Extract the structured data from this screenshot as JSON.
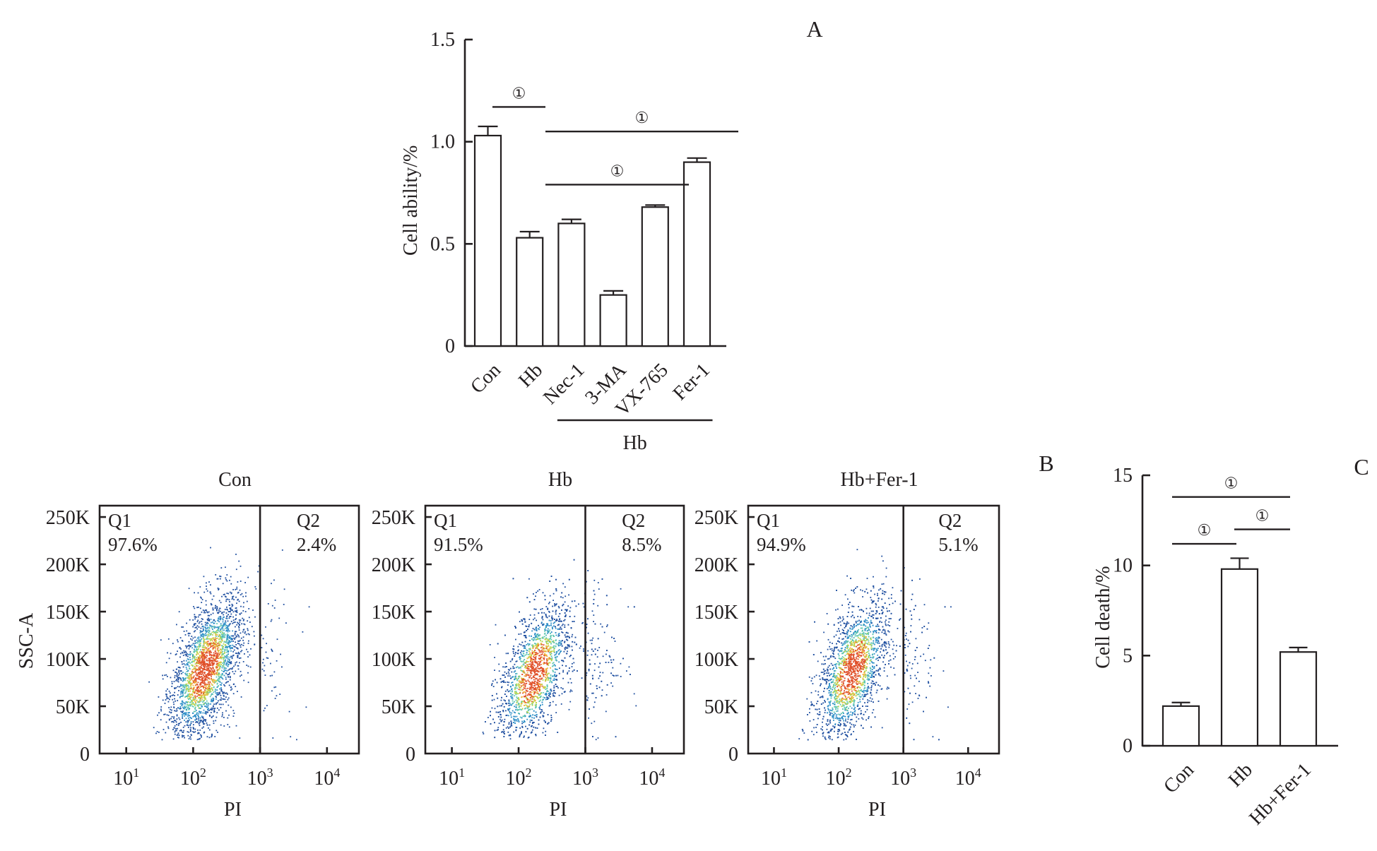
{
  "chart_data": [
    {
      "id": "A",
      "type": "bar",
      "panel_label": "A",
      "title": "",
      "xlabel": "",
      "ylabel": "Cell ability/%",
      "ylim": [
        0,
        1.5
      ],
      "yticks": [
        0,
        0.5,
        1.0,
        1.5
      ],
      "ytick_labels": [
        "0",
        "0.5",
        "1.0",
        "1.5"
      ],
      "categories": [
        "Con",
        "Hb",
        "Nec-1",
        "3-MA",
        "VX-765",
        "Fer-1"
      ],
      "values": [
        1.03,
        0.53,
        0.6,
        0.25,
        0.68,
        0.9
      ],
      "errors": [
        0.045,
        0.03,
        0.02,
        0.02,
        0.01,
        0.02
      ],
      "group_bracket": {
        "label": "Hb",
        "from": "Nec-1",
        "to": "Fer-1"
      },
      "significance": [
        {
          "from": "Con",
          "to": "Hb",
          "y": 1.17,
          "symbol": "①"
        },
        {
          "from": "Hb",
          "to": "Fer-1",
          "y": 1.05,
          "symbol": "①"
        },
        {
          "from": "Hb",
          "to": "VX-765",
          "y": 0.79,
          "symbol": "①"
        }
      ],
      "grid": false
    },
    {
      "id": "B",
      "type": "scatter",
      "panel_label": "B",
      "xlabel": "PI",
      "ylabel": "SSC-A",
      "x_scale": "log",
      "xlim": [
        4,
        30000
      ],
      "xticks": [
        10,
        100,
        1000,
        10000
      ],
      "xtick_labels": [
        "10^1",
        "10^2",
        "10^3",
        "10^4"
      ],
      "ylim": [
        0,
        262000
      ],
      "yticks": [
        0,
        50000,
        100000,
        150000,
        200000,
        250000
      ],
      "ytick_labels": [
        "0",
        "50K",
        "100K",
        "150K",
        "200K",
        "250K"
      ],
      "gate_x": 1000,
      "plots": [
        {
          "title": "Con",
          "q1_label": "Q1",
          "q1_value": "97.6%",
          "q2_label": "Q2",
          "q2_value": "2.4%",
          "center_x": 150,
          "center_y": 90000
        },
        {
          "title": "Hb",
          "q1_label": "Q1",
          "q1_value": "91.5%",
          "q2_label": "Q2",
          "q2_value": "8.5%",
          "center_x": 170,
          "center_y": 85000
        },
        {
          "title": "Hb+Fer-1",
          "q1_label": "Q1",
          "q1_value": "94.9%",
          "q2_label": "Q2",
          "q2_value": "5.1%",
          "center_x": 160,
          "center_y": 88000
        }
      ],
      "density_colors": [
        "#1f4fa0",
        "#2f8fc8",
        "#5ec6b0",
        "#b6d64a",
        "#f0b43a",
        "#e0502a"
      ]
    },
    {
      "id": "C",
      "type": "bar",
      "panel_label": "C",
      "xlabel": "",
      "ylabel": "Cell death/%",
      "ylim": [
        0,
        15
      ],
      "yticks": [
        0,
        5,
        10,
        15
      ],
      "ytick_labels": [
        "0",
        "5",
        "10",
        "15"
      ],
      "categories": [
        "Con",
        "Hb",
        "Hb+Fer-1"
      ],
      "values": [
        2.2,
        9.8,
        5.2
      ],
      "errors": [
        0.2,
        0.6,
        0.25
      ],
      "significance": [
        {
          "from": "Con",
          "to": "Hb+Fer-1",
          "y": 13.8,
          "symbol": "①"
        },
        {
          "from": "Con",
          "to": "Hb",
          "y": 11.2,
          "symbol": "①"
        },
        {
          "from": "Hb",
          "to": "Hb+Fer-1",
          "y": 12.0,
          "symbol": "①"
        }
      ],
      "grid": false
    }
  ]
}
